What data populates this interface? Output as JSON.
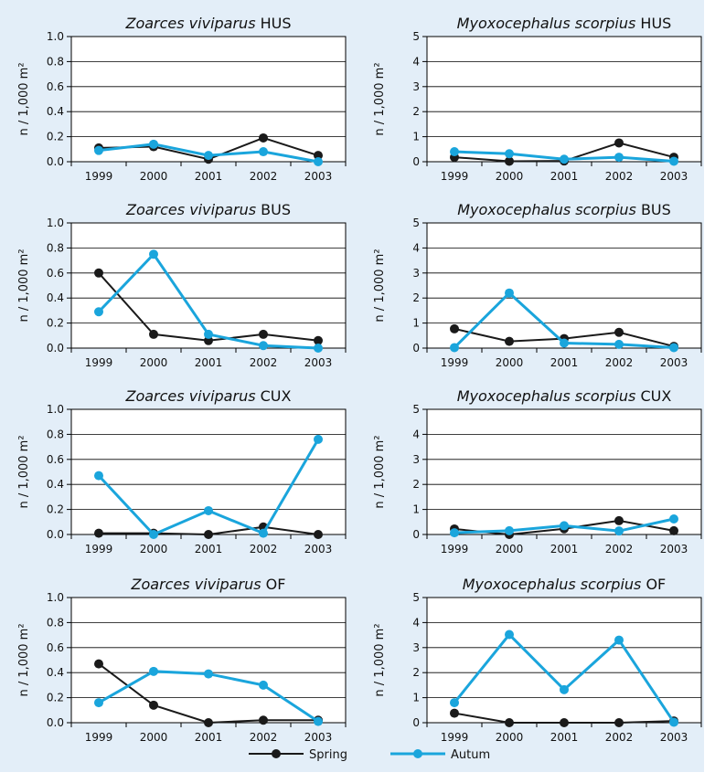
{
  "legend": [
    {
      "name": "Spring",
      "color": "#1a1a1a"
    },
    {
      "name": "Autum",
      "color": "#1aa5dc"
    }
  ],
  "chart_data": [
    {
      "type": "line",
      "title": "Zoarces viviparus HUS",
      "species": "Zoarces viviparus",
      "site": "HUS",
      "ylabel": "n / 1,000 m²",
      "ylim": [
        0,
        1.0
      ],
      "yticks": [
        "0.0",
        "0.2",
        "0.4",
        "0.6",
        "0.8",
        "1.0"
      ],
      "categories": [
        "1999",
        "2000",
        "2001",
        "2002",
        "2003"
      ],
      "series": [
        {
          "name": "Spring",
          "values": [
            0.11,
            0.12,
            0.02,
            0.19,
            0.05
          ]
        },
        {
          "name": "Autum",
          "values": [
            0.09,
            0.14,
            0.05,
            0.08,
            0.0
          ]
        }
      ]
    },
    {
      "type": "line",
      "title": "Myoxocephalus scorpius HUS",
      "species": "Myoxocephalus scorpius",
      "site": "HUS",
      "ylabel": "n / 1,000 m²",
      "ylim": [
        0,
        5
      ],
      "yticks": [
        "0",
        "1",
        "2",
        "3",
        "4",
        "5"
      ],
      "categories": [
        "1999",
        "2000",
        "2001",
        "2002",
        "2003"
      ],
      "series": [
        {
          "name": "Spring",
          "values": [
            0.18,
            0.02,
            0.03,
            0.75,
            0.18
          ]
        },
        {
          "name": "Autum",
          "values": [
            0.4,
            0.32,
            0.1,
            0.18,
            0.02
          ]
        }
      ]
    },
    {
      "type": "line",
      "title": "Zoarces viviparus BUS",
      "species": "Zoarces viviparus",
      "site": "BUS",
      "ylabel": "n / 1,000 m²",
      "ylim": [
        0,
        1.0
      ],
      "yticks": [
        "0.0",
        "0.2",
        "0.4",
        "0.6",
        "0.8",
        "1.0"
      ],
      "categories": [
        "1999",
        "2000",
        "2001",
        "2002",
        "2003"
      ],
      "series": [
        {
          "name": "Spring",
          "values": [
            0.6,
            0.11,
            0.06,
            0.11,
            0.06
          ]
        },
        {
          "name": "Autum",
          "values": [
            0.29,
            0.75,
            0.11,
            0.02,
            0.0
          ]
        }
      ]
    },
    {
      "type": "line",
      "title": "Myoxocephalus scorpius BUS",
      "species": "Myoxocephalus scorpius",
      "site": "BUS",
      "ylabel": "n / 1,000 m²",
      "ylim": [
        0,
        5
      ],
      "yticks": [
        "0",
        "1",
        "2",
        "3",
        "4",
        "5"
      ],
      "categories": [
        "1999",
        "2000",
        "2001",
        "2002",
        "2003"
      ],
      "series": [
        {
          "name": "Spring",
          "values": [
            0.77,
            0.27,
            0.38,
            0.63,
            0.07
          ]
        },
        {
          "name": "Autum",
          "values": [
            0.02,
            2.2,
            0.2,
            0.15,
            0.02
          ]
        }
      ]
    },
    {
      "type": "line",
      "title": "Zoarces viviparus CUX",
      "species": "Zoarces viviparus",
      "site": "CUX",
      "ylabel": "n / 1,000 m²",
      "ylim": [
        0,
        1.0
      ],
      "yticks": [
        "0.0",
        "0.2",
        "0.4",
        "0.6",
        "0.8",
        "1.0"
      ],
      "categories": [
        "1999",
        "2000",
        "2001",
        "2002",
        "2003"
      ],
      "series": [
        {
          "name": "Spring",
          "values": [
            0.01,
            0.01,
            0.0,
            0.06,
            0.0
          ]
        },
        {
          "name": "Autum",
          "values": [
            0.47,
            0.0,
            0.19,
            0.01,
            0.76
          ]
        }
      ]
    },
    {
      "type": "line",
      "title": "Myoxocephalus scorpius CUX",
      "species": "Myoxocephalus scorpius",
      "site": "CUX",
      "ylabel": "n / 1,000 m²",
      "ylim": [
        0,
        5
      ],
      "yticks": [
        "0",
        "1",
        "2",
        "3",
        "4",
        "5"
      ],
      "categories": [
        "1999",
        "2000",
        "2001",
        "2002",
        "2003"
      ],
      "series": [
        {
          "name": "Spring",
          "values": [
            0.22,
            0.0,
            0.23,
            0.55,
            0.15
          ]
        },
        {
          "name": "Autum",
          "values": [
            0.07,
            0.15,
            0.35,
            0.14,
            0.62
          ]
        }
      ]
    },
    {
      "type": "line",
      "title": "Zoarces viviparus OF",
      "species": "Zoarces viviparus",
      "site": "OF",
      "ylabel": "n / 1,000 m²",
      "ylim": [
        0,
        1.0
      ],
      "yticks": [
        "0.0",
        "0.2",
        "0.4",
        "0.6",
        "0.8",
        "1.0"
      ],
      "categories": [
        "1999",
        "2000",
        "2001",
        "2002",
        "2003"
      ],
      "series": [
        {
          "name": "Spring",
          "values": [
            0.47,
            0.14,
            0.0,
            0.02,
            0.02
          ]
        },
        {
          "name": "Autum",
          "values": [
            0.16,
            0.41,
            0.39,
            0.3,
            0.01
          ]
        }
      ]
    },
    {
      "type": "line",
      "title": "Myoxocephalus scorpius OF",
      "species": "Myoxocephalus scorpius",
      "site": "OF",
      "ylabel": "n / 1,000 m²",
      "ylim": [
        0,
        5
      ],
      "yticks": [
        "0",
        "1",
        "2",
        "3",
        "4",
        "5"
      ],
      "categories": [
        "1999",
        "2000",
        "2001",
        "2002",
        "2003"
      ],
      "series": [
        {
          "name": "Spring",
          "values": [
            0.38,
            0.0,
            0.0,
            0.0,
            0.07
          ]
        },
        {
          "name": "Autum",
          "values": [
            0.8,
            3.52,
            1.32,
            3.3,
            0.02
          ]
        }
      ]
    }
  ]
}
